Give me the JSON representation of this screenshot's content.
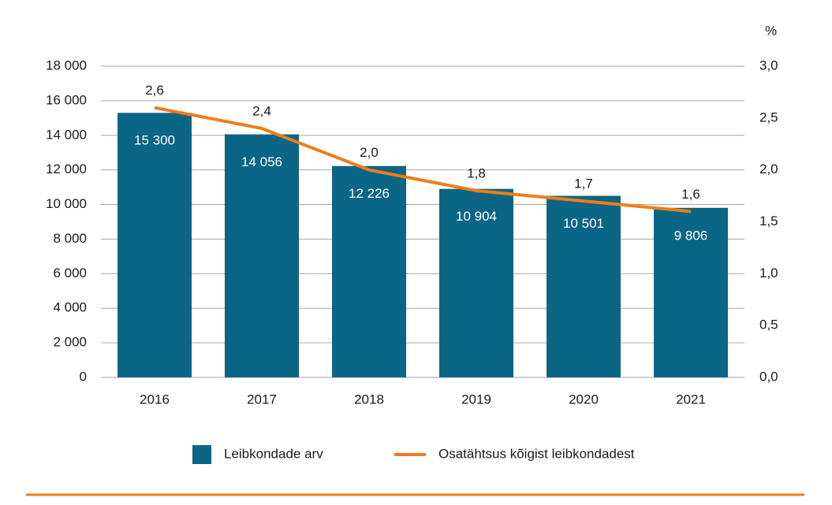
{
  "chart_data": {
    "type": "bar_line",
    "categories": [
      "2016",
      "2017",
      "2018",
      "2019",
      "2020",
      "2021"
    ],
    "series": [
      {
        "name": "Leibkondade arv",
        "type": "bar",
        "color": "#0b6584",
        "values": [
          15300,
          14056,
          12226,
          10904,
          10501,
          9806
        ],
        "value_labels": [
          "15 300",
          "14 056",
          "12 226",
          "10 904",
          "10 501",
          "9 806"
        ]
      },
      {
        "name": "Osatähtsus kõigist leibkondadest",
        "type": "line",
        "color": "#ef7d1a",
        "axis": "y2",
        "values": [
          2.6,
          2.4,
          2.0,
          1.8,
          1.7,
          1.6
        ],
        "value_labels": [
          "2,6",
          "2,4",
          "2,0",
          "1,8",
          "1,7",
          "1,6"
        ]
      }
    ],
    "ylim": [
      0,
      18000
    ],
    "yticks": [
      0,
      {
        "value": 2000,
        "label": "2 000"
      },
      {
        "value": 4000,
        "label": "4 000"
      },
      {
        "value": 6000,
        "label": "6 000"
      },
      {
        "value": 8000,
        "label": "8 000"
      },
      {
        "value": 10000,
        "label": "10 000"
      },
      {
        "value": 12000,
        "label": "12 000"
      },
      {
        "value": 14000,
        "label": "14 000"
      },
      {
        "value": 16000,
        "label": "16 000"
      },
      {
        "value": 18000,
        "label": "18 000"
      }
    ],
    "y2lim": [
      0,
      3
    ],
    "y2ticks": [
      {
        "value": 0,
        "label": "0,0"
      },
      {
        "value": 0.5,
        "label": "0,5"
      },
      {
        "value": 1,
        "label": "1,0"
      },
      {
        "value": 1.5,
        "label": "1,5"
      },
      {
        "value": 2,
        "label": "2,0"
      },
      {
        "value": 2.5,
        "label": "2,5"
      },
      {
        "value": 3,
        "label": "3,0"
      }
    ],
    "y2_label": "%",
    "grid": true
  }
}
